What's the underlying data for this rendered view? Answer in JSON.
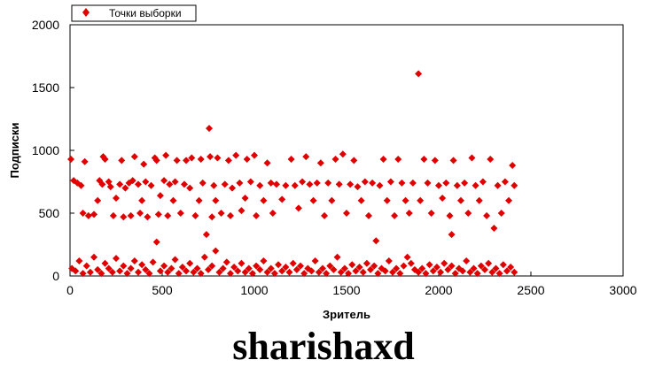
{
  "chart_data": {
    "type": "scatter",
    "xlabel": "Зритель",
    "ylabel": "Подписки",
    "xlim": [
      0,
      3000
    ],
    "ylim": [
      0,
      2000
    ],
    "x_ticks": [
      "0",
      "500",
      "1000",
      "1500",
      "2000",
      "2500",
      "3000"
    ],
    "y_ticks": [
      "0",
      "500",
      "1000",
      "1500",
      "2000"
    ],
    "grid": false,
    "legend_position": "top-left",
    "marker": "diamond",
    "series": [
      {
        "name": "Точки выборки",
        "color": "#e00000",
        "points": [
          [
            5,
            930
          ],
          [
            20,
            760
          ],
          [
            40,
            740
          ],
          [
            60,
            720
          ],
          [
            70,
            500
          ],
          [
            80,
            910
          ],
          [
            100,
            480
          ],
          [
            130,
            490
          ],
          [
            150,
            600
          ],
          [
            160,
            760
          ],
          [
            175,
            730
          ],
          [
            180,
            950
          ],
          [
            190,
            930
          ],
          [
            210,
            750
          ],
          [
            220,
            710
          ],
          [
            235,
            480
          ],
          [
            250,
            620
          ],
          [
            270,
            730
          ],
          [
            280,
            920
          ],
          [
            290,
            470
          ],
          [
            300,
            700
          ],
          [
            320,
            740
          ],
          [
            330,
            480
          ],
          [
            340,
            760
          ],
          [
            350,
            950
          ],
          [
            370,
            730
          ],
          [
            380,
            500
          ],
          [
            390,
            600
          ],
          [
            400,
            890
          ],
          [
            410,
            750
          ],
          [
            420,
            470
          ],
          [
            440,
            720
          ],
          [
            460,
            940
          ],
          [
            470,
            920
          ],
          [
            480,
            490
          ],
          [
            490,
            640
          ],
          [
            510,
            760
          ],
          [
            520,
            960
          ],
          [
            530,
            480
          ],
          [
            540,
            730
          ],
          [
            560,
            600
          ],
          [
            570,
            750
          ],
          [
            580,
            920
          ],
          [
            600,
            500
          ],
          [
            620,
            730
          ],
          [
            630,
            920
          ],
          [
            650,
            700
          ],
          [
            660,
            940
          ],
          [
            680,
            480
          ],
          [
            700,
            600
          ],
          [
            710,
            930
          ],
          [
            720,
            740
          ],
          [
            740,
            330
          ],
          [
            755,
            1175
          ],
          [
            760,
            950
          ],
          [
            770,
            470
          ],
          [
            780,
            720
          ],
          [
            790,
            600
          ],
          [
            800,
            940
          ],
          [
            820,
            500
          ],
          [
            840,
            730
          ],
          [
            860,
            920
          ],
          [
            870,
            480
          ],
          [
            880,
            700
          ],
          [
            900,
            960
          ],
          [
            920,
            740
          ],
          [
            930,
            520
          ],
          [
            950,
            620
          ],
          [
            960,
            930
          ],
          [
            980,
            750
          ],
          [
            1000,
            960
          ],
          [
            1010,
            480
          ],
          [
            1030,
            720
          ],
          [
            1050,
            600
          ],
          [
            1070,
            900
          ],
          [
            1090,
            740
          ],
          [
            1100,
            500
          ],
          [
            1120,
            730
          ],
          [
            1150,
            610
          ],
          [
            1170,
            720
          ],
          [
            1200,
            930
          ],
          [
            1220,
            720
          ],
          [
            1240,
            540
          ],
          [
            1260,
            750
          ],
          [
            1280,
            950
          ],
          [
            1300,
            730
          ],
          [
            1320,
            600
          ],
          [
            1340,
            740
          ],
          [
            1360,
            900
          ],
          [
            1380,
            480
          ],
          [
            1400,
            740
          ],
          [
            1420,
            600
          ],
          [
            1440,
            930
          ],
          [
            1460,
            730
          ],
          [
            1480,
            970
          ],
          [
            1500,
            500
          ],
          [
            1520,
            730
          ],
          [
            1540,
            920
          ],
          [
            1560,
            710
          ],
          [
            1580,
            600
          ],
          [
            1600,
            750
          ],
          [
            1620,
            480
          ],
          [
            1640,
            740
          ],
          [
            1660,
            280
          ],
          [
            1680,
            720
          ],
          [
            1700,
            930
          ],
          [
            1720,
            600
          ],
          [
            1740,
            750
          ],
          [
            1760,
            480
          ],
          [
            1780,
            930
          ],
          [
            1800,
            740
          ],
          [
            1820,
            600
          ],
          [
            1840,
            500
          ],
          [
            1860,
            740
          ],
          [
            1890,
            1610
          ],
          [
            1900,
            600
          ],
          [
            1920,
            930
          ],
          [
            1940,
            740
          ],
          [
            1960,
            500
          ],
          [
            1980,
            920
          ],
          [
            2000,
            720
          ],
          [
            2020,
            620
          ],
          [
            2040,
            740
          ],
          [
            2060,
            480
          ],
          [
            2070,
            330
          ],
          [
            2080,
            920
          ],
          [
            2100,
            720
          ],
          [
            2120,
            600
          ],
          [
            2140,
            740
          ],
          [
            2160,
            500
          ],
          [
            2180,
            940
          ],
          [
            2200,
            720
          ],
          [
            2220,
            600
          ],
          [
            2240,
            750
          ],
          [
            2260,
            480
          ],
          [
            2280,
            930
          ],
          [
            2300,
            380
          ],
          [
            2320,
            720
          ],
          [
            2340,
            500
          ],
          [
            2360,
            750
          ],
          [
            2380,
            600
          ],
          [
            2400,
            880
          ],
          [
            2410,
            720
          ],
          [
            10,
            60
          ],
          [
            30,
            40
          ],
          [
            50,
            120
          ],
          [
            70,
            20
          ],
          [
            90,
            80
          ],
          [
            110,
            30
          ],
          [
            130,
            150
          ],
          [
            150,
            50
          ],
          [
            170,
            20
          ],
          [
            190,
            100
          ],
          [
            210,
            60
          ],
          [
            230,
            30
          ],
          [
            250,
            140
          ],
          [
            270,
            40
          ],
          [
            290,
            80
          ],
          [
            310,
            20
          ],
          [
            330,
            60
          ],
          [
            350,
            120
          ],
          [
            370,
            30
          ],
          [
            390,
            90
          ],
          [
            410,
            50
          ],
          [
            430,
            20
          ],
          [
            450,
            110
          ],
          [
            470,
            270
          ],
          [
            490,
            40
          ],
          [
            510,
            80
          ],
          [
            530,
            30
          ],
          [
            550,
            60
          ],
          [
            570,
            130
          ],
          [
            590,
            20
          ],
          [
            610,
            70
          ],
          [
            630,
            40
          ],
          [
            650,
            100
          ],
          [
            670,
            30
          ],
          [
            690,
            60
          ],
          [
            710,
            20
          ],
          [
            730,
            150
          ],
          [
            750,
            50
          ],
          [
            770,
            80
          ],
          [
            790,
            200
          ],
          [
            810,
            30
          ],
          [
            830,
            60
          ],
          [
            850,
            110
          ],
          [
            870,
            20
          ],
          [
            890,
            70
          ],
          [
            910,
            40
          ],
          [
            930,
            100
          ],
          [
            950,
            30
          ],
          [
            970,
            60
          ],
          [
            990,
            20
          ],
          [
            1010,
            80
          ],
          [
            1030,
            50
          ],
          [
            1050,
            120
          ],
          [
            1070,
            30
          ],
          [
            1090,
            60
          ],
          [
            1110,
            20
          ],
          [
            1130,
            90
          ],
          [
            1150,
            40
          ],
          [
            1170,
            70
          ],
          [
            1190,
            30
          ],
          [
            1210,
            100
          ],
          [
            1230,
            50
          ],
          [
            1250,
            80
          ],
          [
            1270,
            20
          ],
          [
            1290,
            60
          ],
          [
            1310,
            40
          ],
          [
            1330,
            120
          ],
          [
            1350,
            30
          ],
          [
            1370,
            60
          ],
          [
            1390,
            20
          ],
          [
            1410,
            80
          ],
          [
            1430,
            50
          ],
          [
            1450,
            150
          ],
          [
            1470,
            30
          ],
          [
            1490,
            60
          ],
          [
            1510,
            20
          ],
          [
            1530,
            90
          ],
          [
            1550,
            40
          ],
          [
            1570,
            70
          ],
          [
            1590,
            30
          ],
          [
            1610,
            100
          ],
          [
            1630,
            50
          ],
          [
            1650,
            80
          ],
          [
            1670,
            20
          ],
          [
            1690,
            60
          ],
          [
            1710,
            40
          ],
          [
            1730,
            120
          ],
          [
            1750,
            30
          ],
          [
            1770,
            60
          ],
          [
            1790,
            20
          ],
          [
            1810,
            80
          ],
          [
            1830,
            150
          ],
          [
            1850,
            100
          ],
          [
            1870,
            50
          ],
          [
            1890,
            30
          ],
          [
            1910,
            60
          ],
          [
            1930,
            20
          ],
          [
            1950,
            90
          ],
          [
            1970,
            40
          ],
          [
            1990,
            70
          ],
          [
            2010,
            30
          ],
          [
            2030,
            100
          ],
          [
            2050,
            50
          ],
          [
            2070,
            80
          ],
          [
            2090,
            20
          ],
          [
            2110,
            60
          ],
          [
            2130,
            40
          ],
          [
            2150,
            120
          ],
          [
            2170,
            30
          ],
          [
            2190,
            60
          ],
          [
            2210,
            20
          ],
          [
            2230,
            80
          ],
          [
            2250,
            50
          ],
          [
            2270,
            100
          ],
          [
            2290,
            30
          ],
          [
            2310,
            60
          ],
          [
            2330,
            20
          ],
          [
            2350,
            90
          ],
          [
            2370,
            40
          ],
          [
            2390,
            70
          ],
          [
            2410,
            30
          ]
        ]
      }
    ]
  },
  "watermark": "sharishaxd"
}
